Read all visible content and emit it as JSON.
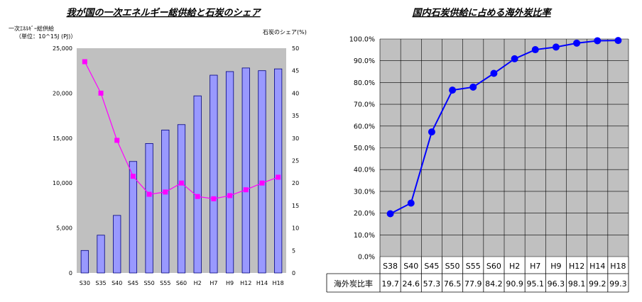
{
  "chart_data": [
    {
      "type": "bar",
      "title": "我が国の一次エネルギー総供給と石炭のシェア",
      "ylabel": "一次ｴﾈﾙｷﾞｰ総供給",
      "ylabel_unit": "（単位：10^15J (PJ)）",
      "y2label": "石炭のシェア(%)",
      "categories": [
        "S30",
        "S35",
        "S40",
        "S45",
        "S50",
        "S55",
        "S60",
        "H2",
        "H7",
        "H9",
        "H12",
        "H14",
        "H18"
      ],
      "ylim": [
        0,
        25000
      ],
      "yticks": [
        "0",
        "5,000",
        "10,000",
        "15,000",
        "20,000",
        "25,000"
      ],
      "y2lim": [
        0,
        50
      ],
      "y2ticks": [
        "0",
        "5",
        "10",
        "15",
        "20",
        "25",
        "30",
        "35",
        "40",
        "45",
        "50"
      ],
      "grid": false,
      "series": [
        {
          "values": [
            2500,
            4200,
            6400,
            12400,
            14400,
            15900,
            16500,
            19700,
            22000,
            22400,
            22800,
            22500,
            22700
          ],
          "color": "#9999ff",
          "axis": "left"
        },
        {
          "type": "line",
          "values": [
            47,
            40,
            29.5,
            21.5,
            17.5,
            18,
            20,
            17,
            16.5,
            17.2,
            18.5,
            20,
            21.3
          ],
          "color": "#ff00ff",
          "axis": "right"
        }
      ]
    },
    {
      "type": "line",
      "title": "国内石炭供給に占める海外炭比率",
      "categories": [
        "S38",
        "S40",
        "S45",
        "S50",
        "S55",
        "S60",
        "H2",
        "H7",
        "H9",
        "H12",
        "H14",
        "H18"
      ],
      "ylim": [
        0,
        100
      ],
      "yticks": [
        "0.0%",
        "10.0%",
        "20.0%",
        "30.0%",
        "40.0%",
        "50.0%",
        "60.0%",
        "70.0%",
        "80.0%",
        "90.0%",
        "100.0%"
      ],
      "grid": true,
      "series": [
        {
          "values": [
            19.7,
            24.6,
            57.3,
            76.5,
            77.9,
            84.2,
            90.9,
            95.1,
            96.3,
            98.1,
            99.2,
            99.3
          ],
          "color": "#0000ff"
        }
      ],
      "table": {
        "row_label": "海外炭比率",
        "values": [
          "19.7",
          "24.6",
          "57.3",
          "76.5",
          "77.9",
          "84.2",
          "90.9",
          "95.1",
          "96.3",
          "98.1",
          "99.2",
          "99.3"
        ]
      }
    }
  ]
}
